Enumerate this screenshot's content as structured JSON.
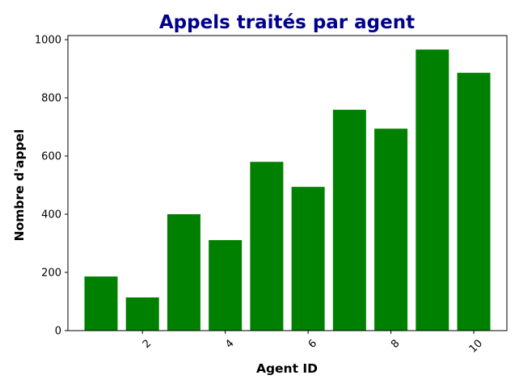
{
  "chart_data": {
    "type": "bar",
    "title": "Appels traités par agent",
    "xlabel": "Agent ID",
    "ylabel": "Nombre d'appel",
    "x": [
      1,
      2,
      3,
      4,
      5,
      6,
      7,
      8,
      9,
      10
    ],
    "values": [
      186,
      114,
      400,
      311,
      580,
      494,
      759,
      694,
      966,
      886
    ],
    "xticks": [
      2,
      4,
      6,
      8,
      10
    ],
    "yticks": [
      0,
      200,
      400,
      600,
      800,
      1000
    ],
    "xlim": [
      0.2,
      10.8
    ],
    "ylim": [
      0,
      1014
    ],
    "grid": false,
    "colors": {
      "bars": "#008000",
      "title": "#00008b"
    }
  }
}
